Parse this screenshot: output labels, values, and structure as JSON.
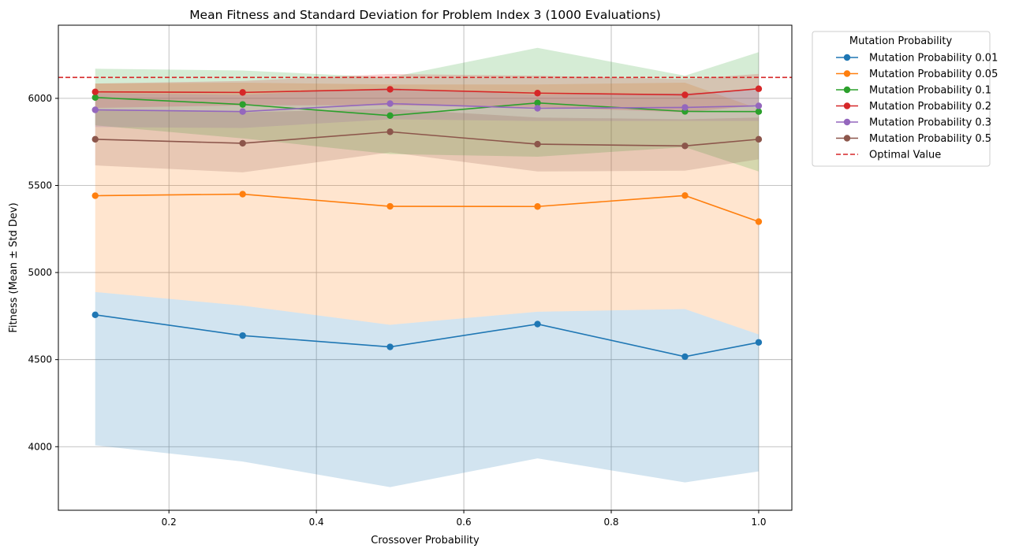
{
  "chart_data": {
    "type": "line",
    "title": "Mean Fitness and Standard Deviation for Problem Index 3 (1000 Evaluations)",
    "xlabel": "Crossover Probability",
    "ylabel": "Fitness (Mean ± Std Dev)",
    "xlim": [
      0.05,
      1.045
    ],
    "ylim": [
      3635,
      6420
    ],
    "xticks": [
      0.2,
      0.4,
      0.6,
      0.8,
      1.0
    ],
    "xtick_labels": [
      "0.2",
      "0.4",
      "0.6",
      "0.8",
      "1.0"
    ],
    "yticks": [
      4000,
      4500,
      5000,
      5500,
      6000
    ],
    "ytick_labels": [
      "4000",
      "4500",
      "5000",
      "5500",
      "6000"
    ],
    "grid": true,
    "legend_title": "Mutation Probability",
    "legend_placement": "outside-upper-right",
    "x": [
      0.1,
      0.3,
      0.5,
      0.7,
      0.9,
      1.0
    ],
    "series": [
      {
        "name": "Mutation Probability 0.01",
        "color": "#1f77b4",
        "mean": [
          4757,
          4638,
          4573,
          4704,
          4517,
          4599
        ],
        "lower": [
          4008,
          3915,
          3768,
          3933,
          3795,
          3858
        ],
        "upper": [
          4888,
          4810,
          4700,
          4775,
          4790,
          4645
        ]
      },
      {
        "name": "Mutation Probability 0.05",
        "color": "#ff7f0e",
        "mean": [
          5441,
          5450,
          5380,
          5379,
          5442,
          5292
        ],
        "lower": [
          4888,
          4810,
          4700,
          4775,
          4790,
          4645
        ],
        "upper": [
          6085,
          6090,
          6080,
          6080,
          6090,
          5940
        ]
      },
      {
        "name": "Mutation Probability 0.1",
        "color": "#2ca02c",
        "mean": [
          6005,
          5965,
          5901,
          5974,
          5925,
          5924
        ],
        "lower": [
          5845,
          5770,
          5680,
          5665,
          5720,
          5580
        ],
        "upper": [
          6170,
          6160,
          6120,
          6290,
          6130,
          6265
        ]
      },
      {
        "name": "Mutation Probability 0.2",
        "color": "#d62728",
        "mean": [
          6037,
          6034,
          6052,
          6030,
          6020,
          6055
        ],
        "lower": [
          5945,
          5960,
          5960,
          5950,
          5920,
          5960
        ],
        "upper": [
          6085,
          6100,
          6140,
          6130,
          6110,
          6140
        ]
      },
      {
        "name": "Mutation Probability 0.3",
        "color": "#9467bd",
        "mean": [
          5934,
          5924,
          5970,
          5943,
          5948,
          5957
        ],
        "lower": [
          5835,
          5830,
          5880,
          5870,
          5870,
          5870
        ],
        "upper": [
          6030,
          6020,
          6060,
          6020,
          6030,
          6050
        ]
      },
      {
        "name": "Mutation Probability 0.5",
        "color": "#8c564b",
        "mean": [
          5765,
          5742,
          5808,
          5737,
          5727,
          5765
        ],
        "lower": [
          5615,
          5575,
          5690,
          5580,
          5585,
          5650
        ],
        "upper": [
          5935,
          5920,
          5940,
          5890,
          5880,
          5890
        ]
      }
    ],
    "optimal": {
      "name": "Optimal Value",
      "value": 6120,
      "color": "#d62728"
    }
  }
}
